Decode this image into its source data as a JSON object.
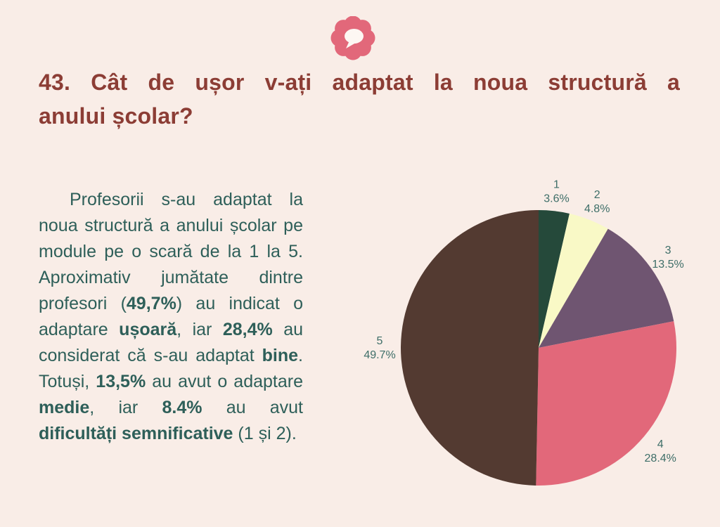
{
  "page": {
    "background": "#f9ede7"
  },
  "decoration": {
    "flower_icon": "flower-with-speech-bubble",
    "flower_color": "#e2687a",
    "bubble_color": "#fdf7f3"
  },
  "title": {
    "line1": "43. Cât de ușor v-ați adaptat la noua structură a",
    "line2": "anului școlar?",
    "color": "#8c3d35"
  },
  "paragraph": {
    "color": "#2e5f59",
    "segments": [
      {
        "text": "Profesorii s-au adaptat la noua structură a anului școlar pe module pe o scară de la 1 la 5. Aproximativ jumătate dintre profesori (",
        "bold": false
      },
      {
        "text": "49,7%",
        "bold": true
      },
      {
        "text": ") au indicat o adaptare ",
        "bold": false
      },
      {
        "text": "ușoară",
        "bold": true
      },
      {
        "text": ", iar ",
        "bold": false
      },
      {
        "text": "28,4%",
        "bold": true
      },
      {
        "text": " au considerat că s-au adaptat ",
        "bold": false
      },
      {
        "text": "bine",
        "bold": true
      },
      {
        "text": ". Totuși, ",
        "bold": false
      },
      {
        "text": "13,5%",
        "bold": true
      },
      {
        "text": " au avut o adaptare ",
        "bold": false
      },
      {
        "text": "medie",
        "bold": true
      },
      {
        "text": ", iar ",
        "bold": false
      },
      {
        "text": "8.4%",
        "bold": true
      },
      {
        "text": " au avut ",
        "bold": false
      },
      {
        "text": "dificultăți semnificative",
        "bold": true
      },
      {
        "text": " (1 și 2).",
        "bold": false
      }
    ]
  },
  "chart_data": {
    "type": "pie",
    "title": "",
    "categories": [
      "1",
      "2",
      "3",
      "4",
      "5"
    ],
    "values": [
      3.6,
      4.8,
      13.5,
      28.4,
      49.7
    ],
    "labels": [
      "3.6%",
      "4.8%",
      "13.5%",
      "28.4%",
      "49.7%"
    ],
    "colors": [
      "#25493a",
      "#f9f9c6",
      "#6f5571",
      "#e2687a",
      "#533a31"
    ],
    "label_color": "#3e6e68",
    "start_angle_deg": 0,
    "direction": "clockwise",
    "legend": "none",
    "label_position": "outside"
  }
}
